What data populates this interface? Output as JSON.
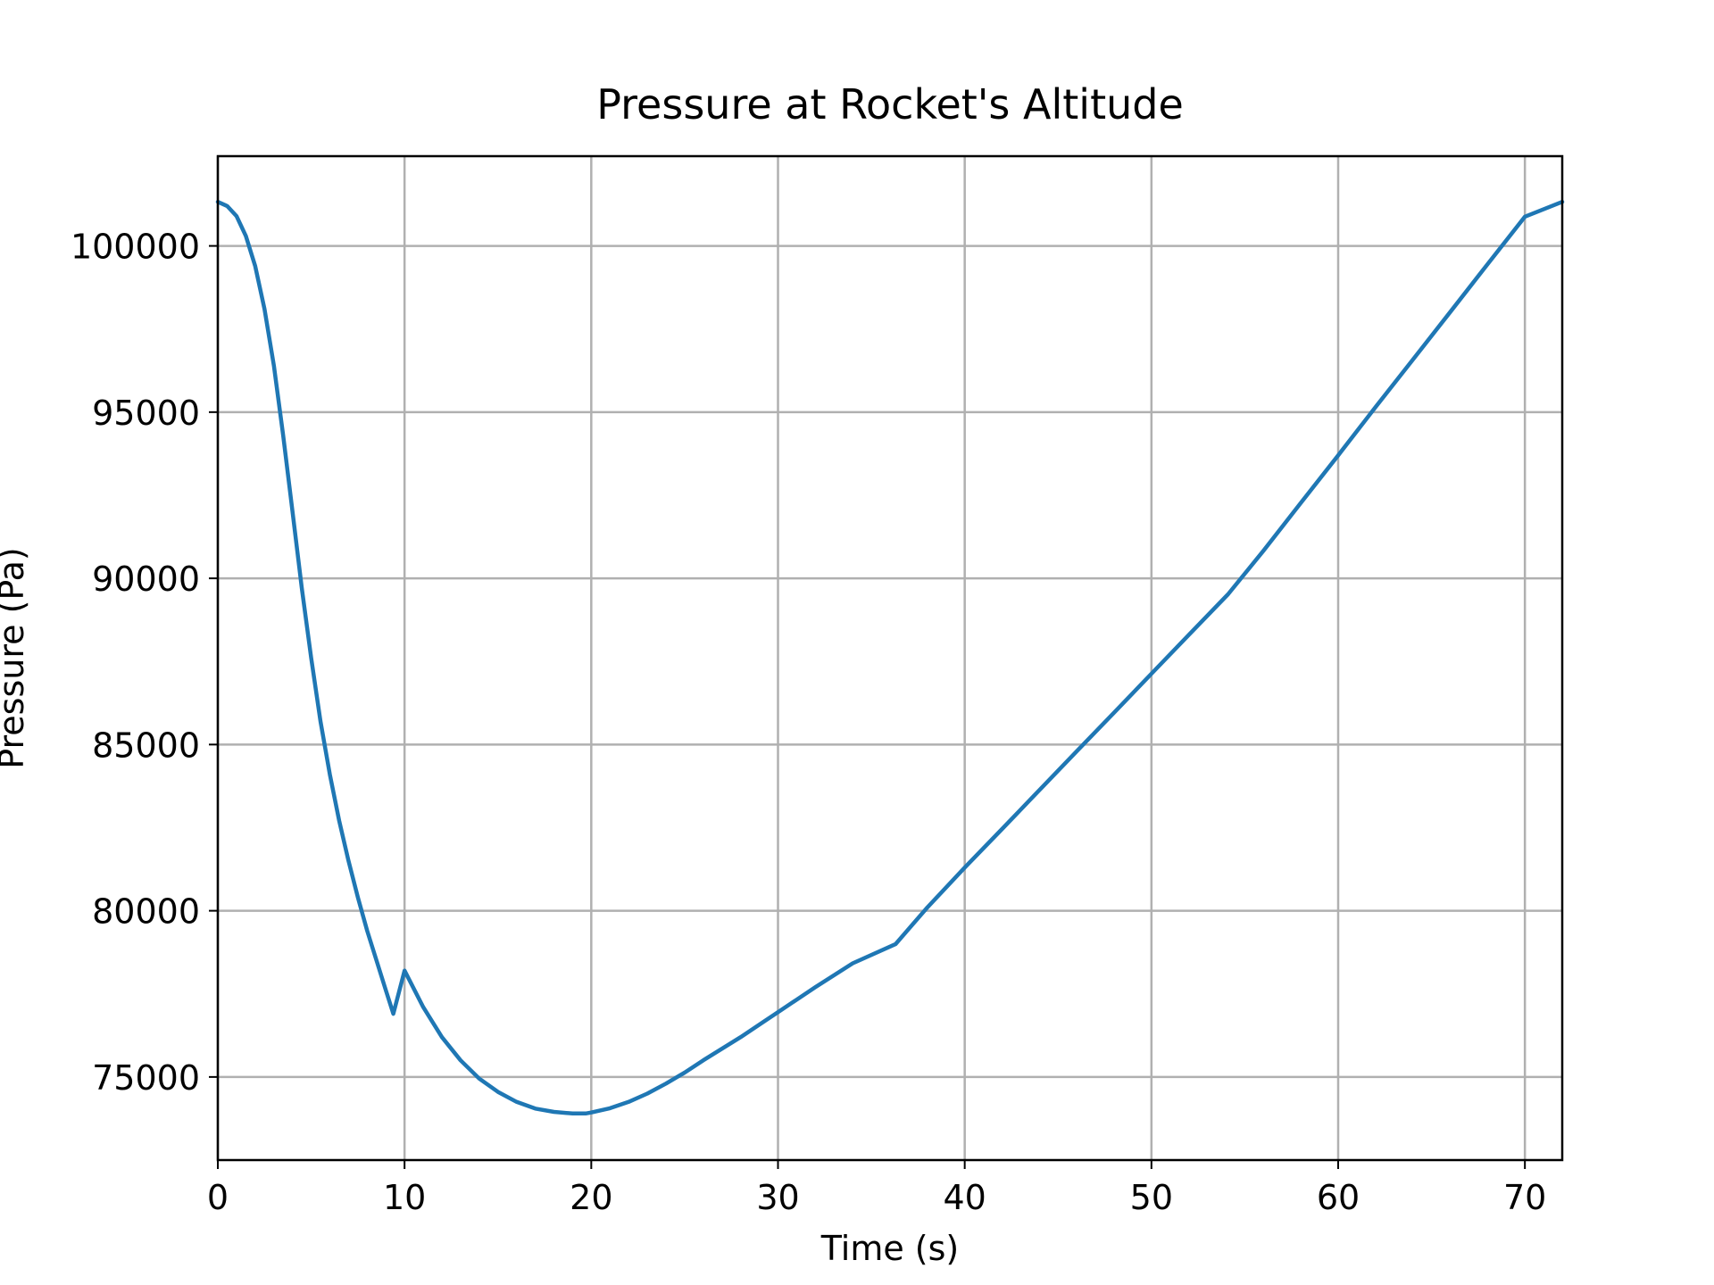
{
  "chart_data": {
    "type": "line",
    "title": "Pressure at Rocket's Altitude",
    "xlabel": "Time (s)",
    "ylabel": "Pressure (Pa)",
    "xlim": [
      0,
      72
    ],
    "ylim": [
      72500,
      102700
    ],
    "xticks": [
      0,
      10,
      20,
      30,
      40,
      50,
      60,
      70
    ],
    "yticks": [
      75000,
      80000,
      85000,
      90000,
      95000,
      100000
    ],
    "grid": true,
    "legend": "none",
    "series": [
      {
        "color": "#1f77b4",
        "x": [
          0,
          0.5,
          1,
          1.5,
          2,
          2.5,
          3,
          3.5,
          4,
          4.5,
          5,
          5.5,
          6,
          6.5,
          7,
          7.5,
          8,
          8.5,
          9,
          9.4,
          10,
          11,
          12,
          13,
          14,
          15,
          16,
          17,
          18,
          19,
          19.7,
          20,
          21,
          22,
          23,
          24,
          25,
          26,
          28,
          30,
          32,
          34,
          36.3,
          38,
          40,
          42,
          44,
          46,
          48,
          50,
          52,
          54.1,
          56,
          58,
          60,
          62,
          64,
          66,
          68,
          70,
          72
        ],
        "y": [
          101325,
          101200,
          100900,
          100300,
          99400,
          98100,
          96400,
          94300,
          92000,
          89700,
          87600,
          85700,
          84100,
          82700,
          81500,
          80400,
          79400,
          78500,
          77600,
          76900,
          78200,
          77100,
          76200,
          75500,
          74950,
          74550,
          74250,
          74050,
          73950,
          73900,
          73900,
          73930,
          74060,
          74250,
          74500,
          74800,
          75130,
          75500,
          76200,
          76950,
          77700,
          78420,
          79000,
          80100,
          81300,
          82460,
          83630,
          84800,
          85960,
          87130,
          88300,
          89520,
          90830,
          92270,
          93700,
          95150,
          96580,
          98010,
          99450,
          100880,
          101325
        ]
      }
    ]
  }
}
